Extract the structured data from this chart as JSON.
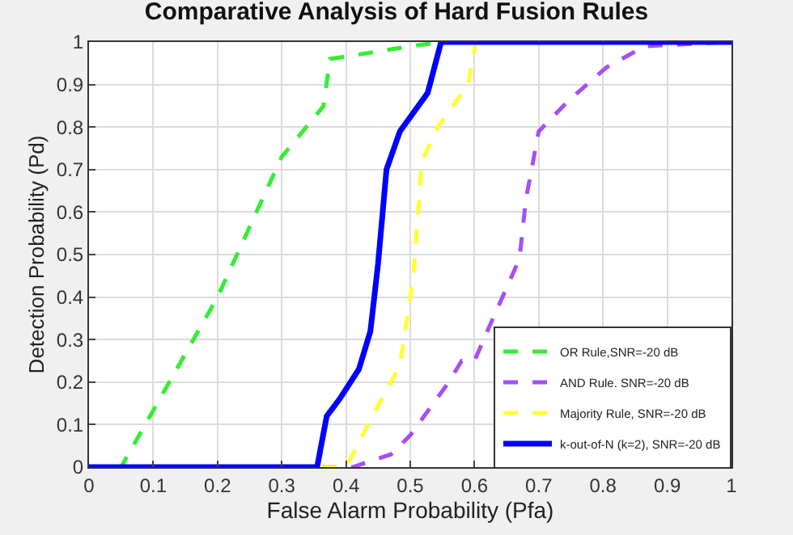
{
  "chart_data": {
    "type": "line",
    "title": "Comparative Analysis of Hard Fusion Rules",
    "xlabel": "False Alarm Probability (Pfa)",
    "ylabel": "Detection Probability (Pd)",
    "xlim": [
      0,
      1
    ],
    "ylim": [
      0,
      1
    ],
    "xticks": [
      0,
      0.1,
      0.2,
      0.3,
      0.4,
      0.5,
      0.6,
      0.7,
      0.8,
      0.9,
      1
    ],
    "yticks": [
      0,
      0.1,
      0.2,
      0.3,
      0.4,
      0.5,
      0.6,
      0.7,
      0.8,
      0.9,
      1
    ],
    "grid": true,
    "legend": "bottom right",
    "marker": "none",
    "series": [
      {
        "name": "OR Rule,SNR=-20 dB",
        "color": "#33ee33",
        "line_style": "dashed",
        "x": [
          0,
          0.05,
          0.2,
          0.3,
          0.36,
          0.365,
          0.375,
          0.5,
          0.55
        ],
        "values": [
          0,
          0,
          0.4,
          0.73,
          0.84,
          0.85,
          0.96,
          0.99,
          1
        ]
      },
      {
        "name": "AND Rule. SNR=-20 dB",
        "color": "#a64ff5",
        "line_style": "dashed",
        "x": [
          0,
          0.41,
          0.47,
          0.5,
          0.56,
          0.58,
          0.6,
          0.62,
          0.67,
          0.68,
          0.7,
          0.745,
          0.805,
          0.865,
          0.99,
          1
        ],
        "values": [
          0,
          0,
          0.03,
          0.075,
          0.2,
          0.25,
          0.25,
          0.32,
          0.49,
          0.63,
          0.79,
          0.86,
          0.94,
          0.99,
          1,
          0.99
        ]
      },
      {
        "name": "Majority Rule, SNR=-20 dB",
        "color": "#ffff33",
        "line_style": "dashed",
        "x": [
          0,
          0.4,
          0.434,
          0.484,
          0.505,
          0.518,
          0.543,
          0.59,
          0.602
        ],
        "values": [
          0,
          0,
          0.1,
          0.24,
          0.45,
          0.72,
          0.8,
          0.9,
          1
        ]
      },
      {
        "name": "k-out-of-N (k=2), SNR=-20 dB",
        "color": "#0000ff",
        "line_style": "solid",
        "x": [
          0,
          0.355,
          0.37,
          0.39,
          0.42,
          0.438,
          0.45,
          0.463,
          0.484,
          0.527,
          0.548,
          1
        ],
        "values": [
          0,
          0,
          0.12,
          0.16,
          0.23,
          0.32,
          0.48,
          0.7,
          0.79,
          0.88,
          1,
          1
        ]
      }
    ]
  }
}
